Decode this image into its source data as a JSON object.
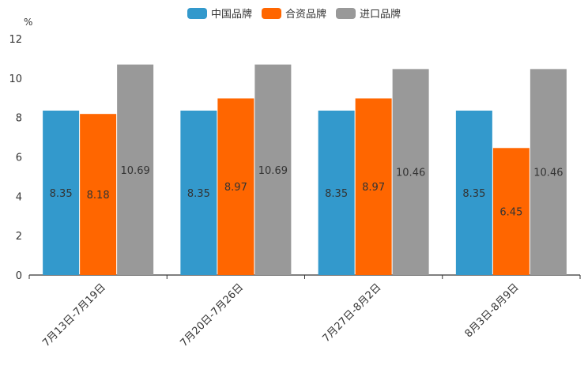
{
  "chart_data": {
    "type": "bar",
    "unit_label": "%",
    "categories": [
      "7月13日-7月19日",
      "7月20日-7月26日",
      "7月27日-8月2日",
      "8月3日-8月9日"
    ],
    "series": [
      {
        "name": "中国品牌",
        "color": "#3399cc",
        "values": [
          8.35,
          8.35,
          8.35,
          8.35
        ],
        "labels": [
          "8.35",
          "8.35",
          "8.35",
          "8.35"
        ]
      },
      {
        "name": "合资品牌",
        "color": "#ff6600",
        "values": [
          8.18,
          8.97,
          8.97,
          6.45
        ],
        "labels": [
          "8.18",
          "8.97",
          "8.97",
          "6.45"
        ]
      },
      {
        "name": "进口品牌",
        "color": "#999999",
        "values": [
          10.69,
          10.69,
          10.46,
          10.46
        ],
        "labels": [
          "10.69",
          "10.69",
          "10.46",
          "10.46"
        ]
      }
    ],
    "ylim": [
      0,
      12
    ],
    "yticks": [
      0,
      2,
      4,
      6,
      8,
      10,
      12
    ],
    "legend_position": "top-center",
    "grid": false
  }
}
